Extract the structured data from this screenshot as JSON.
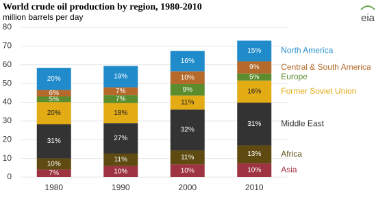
{
  "chart_data": {
    "type": "stacked-bar",
    "title": "World crude oil production by region, 1980-2010",
    "subtitle": "million barrels per day",
    "logo": "eia",
    "categories": [
      "1980",
      "1990",
      "2000",
      "2010"
    ],
    "ylim": [
      0,
      80
    ],
    "yticks": [
      0,
      10,
      20,
      30,
      40,
      50,
      60,
      70,
      80
    ],
    "grid": true,
    "series": [
      {
        "name": "Asia",
        "color": "#9e3341",
        "values": [
          4.1,
          6.0,
          6.8,
          7.4
        ],
        "share_labels": [
          "7%",
          "10%",
          "10%",
          "10%"
        ]
      },
      {
        "name": "Africa",
        "color": "#5f4b12",
        "values": [
          5.9,
          6.6,
          7.5,
          9.6
        ],
        "share_labels": [
          "10%",
          "11%",
          "11%",
          "13%"
        ]
      },
      {
        "name": "Middle East",
        "color": "#333333",
        "values": [
          18.3,
          16.2,
          21.8,
          22.8
        ],
        "share_labels": [
          "31%",
          "27%",
          "32%",
          "31%"
        ]
      },
      {
        "name": "Former Soviet Union",
        "color": "#e3ab14",
        "values": [
          11.8,
          10.8,
          7.5,
          11.8
        ],
        "share_labels": [
          "20%",
          "18%",
          "11%",
          "16%"
        ]
      },
      {
        "name": "Europe",
        "color": "#5b8c2e",
        "values": [
          3.0,
          4.2,
          6.1,
          3.7
        ],
        "share_labels": [
          "5%",
          "7%",
          "9%",
          "5%"
        ]
      },
      {
        "name": "Central & South America",
        "color": "#b56a2b",
        "values": [
          3.5,
          4.2,
          6.8,
          6.6
        ],
        "share_labels": [
          "6%",
          "7%",
          "10%",
          "9%"
        ]
      },
      {
        "name": "North America",
        "color": "#1f8bcb",
        "values": [
          11.8,
          11.4,
          10.9,
          11.0
        ],
        "share_labels": [
          "20%",
          "19%",
          "16%",
          "15%"
        ]
      }
    ]
  }
}
